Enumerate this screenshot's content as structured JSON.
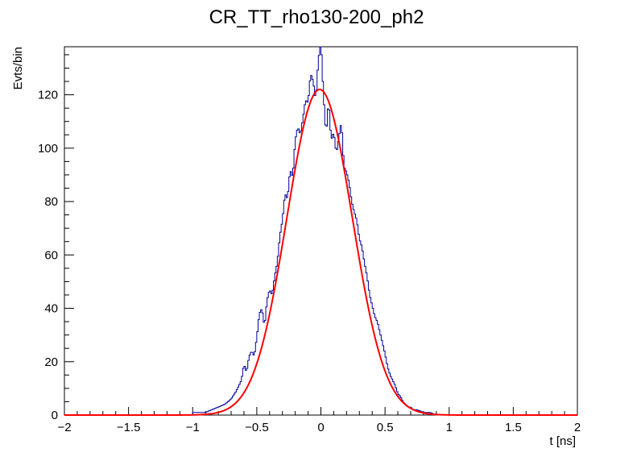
{
  "chart_data": {
    "type": "histogram",
    "title": "CR_TT_rho130-200_ph2",
    "xlabel": "t [ns]",
    "ylabel": "Evts/bin",
    "xlim": [
      -2,
      2
    ],
    "ylim": [
      0,
      138
    ],
    "xticks": [
      -2,
      -1.5,
      -1,
      -0.5,
      0,
      0.5,
      1,
      1.5,
      2
    ],
    "xtick_labels": [
      "−2",
      "−1.5",
      "−1",
      "−0.5",
      "0",
      "0.5",
      "1",
      "1.5",
      "2"
    ],
    "yticks": [
      0,
      20,
      40,
      60,
      80,
      100,
      120
    ],
    "ytick_labels": [
      "0",
      "20",
      "40",
      "60",
      "80",
      "100",
      "120"
    ],
    "grid": false,
    "legend": "none",
    "colors": {
      "histogram": "#000099",
      "fit": "#ff0000",
      "axes": "#000000"
    },
    "histogram": {
      "bin_width": 0.01,
      "points": [
        [
          -1.0,
          1
        ],
        [
          -0.95,
          1
        ],
        [
          -0.9,
          1
        ],
        [
          -0.85,
          2
        ],
        [
          -0.8,
          3
        ],
        [
          -0.75,
          4
        ],
        [
          -0.7,
          6
        ],
        [
          -0.66,
          9
        ],
        [
          -0.62,
          13
        ],
        [
          -0.6,
          19
        ],
        [
          -0.58,
          16
        ],
        [
          -0.56,
          22
        ],
        [
          -0.54,
          24
        ],
        [
          -0.52,
          22
        ],
        [
          -0.5,
          29
        ],
        [
          -0.48,
          38
        ],
        [
          -0.46,
          40
        ],
        [
          -0.44,
          33
        ],
        [
          -0.42,
          43
        ],
        [
          -0.4,
          47
        ],
        [
          -0.38,
          45
        ],
        [
          -0.36,
          52
        ],
        [
          -0.34,
          57
        ],
        [
          -0.32,
          67
        ],
        [
          -0.3,
          73
        ],
        [
          -0.28,
          83
        ],
        [
          -0.26,
          81
        ],
        [
          -0.24,
          92
        ],
        [
          -0.22,
          89
        ],
        [
          -0.2,
          103
        ],
        [
          -0.18,
          108
        ],
        [
          -0.16,
          105
        ],
        [
          -0.14,
          111
        ],
        [
          -0.12,
          118
        ],
        [
          -0.1,
          117
        ],
        [
          -0.08,
          128
        ],
        [
          -0.06,
          125
        ],
        [
          -0.04,
          118
        ],
        [
          -0.02,
          133
        ],
        [
          0.0,
          140
        ],
        [
          0.02,
          120
        ],
        [
          0.04,
          105
        ],
        [
          0.06,
          118
        ],
        [
          0.08,
          103
        ],
        [
          0.1,
          106
        ],
        [
          0.12,
          98
        ],
        [
          0.14,
          104
        ],
        [
          0.16,
          110
        ],
        [
          0.18,
          93
        ],
        [
          0.2,
          91
        ],
        [
          0.22,
          87
        ],
        [
          0.24,
          80
        ],
        [
          0.26,
          76
        ],
        [
          0.28,
          73
        ],
        [
          0.3,
          66
        ],
        [
          0.32,
          63
        ],
        [
          0.34,
          57
        ],
        [
          0.36,
          52
        ],
        [
          0.38,
          45
        ],
        [
          0.4,
          41
        ],
        [
          0.42,
          37
        ],
        [
          0.44,
          35
        ],
        [
          0.46,
          31
        ],
        [
          0.48,
          27
        ],
        [
          0.5,
          23
        ],
        [
          0.52,
          18
        ],
        [
          0.54,
          15
        ],
        [
          0.56,
          13
        ],
        [
          0.58,
          11
        ],
        [
          0.6,
          8
        ],
        [
          0.62,
          7
        ],
        [
          0.64,
          5
        ],
        [
          0.66,
          4
        ],
        [
          0.68,
          3
        ],
        [
          0.7,
          3
        ],
        [
          0.72,
          2
        ],
        [
          0.75,
          2
        ],
        [
          0.8,
          1
        ],
        [
          0.85,
          1
        ],
        [
          0.9,
          0
        ]
      ]
    },
    "fit": {
      "function": "gaussian",
      "amplitude": 122,
      "mean": -0.01,
      "sigma": 0.255
    }
  }
}
